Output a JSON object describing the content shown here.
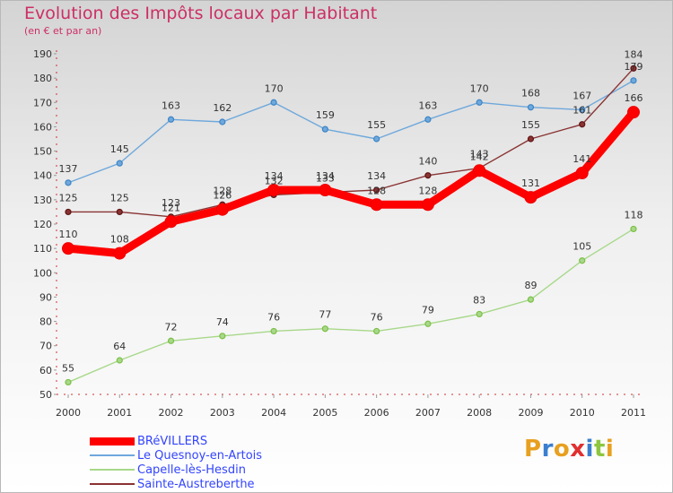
{
  "header": {
    "title": "Evolution des Impôts locaux par Habitant",
    "subtitle": "(en € et par an)"
  },
  "brand": {
    "letters": [
      "P",
      "r",
      "o",
      "x",
      "i",
      "t",
      "i"
    ],
    "colors": [
      "#e8a020",
      "#3a7fcf",
      "#e8a020",
      "#e03030",
      "#3a7fcf",
      "#8dc63f",
      "#e8a020"
    ]
  },
  "chart_data": {
    "type": "line",
    "title": "Evolution des Impôts locaux par Habitant",
    "ylabel": "(en € et par an)",
    "xlabel": "",
    "x": [
      "2000",
      "2001",
      "2002",
      "2003",
      "2004",
      "2005",
      "2006",
      "2007",
      "2008",
      "2009",
      "2010",
      "2011"
    ],
    "ylim": [
      50,
      190
    ],
    "yticks": [
      50,
      60,
      70,
      80,
      90,
      100,
      110,
      120,
      130,
      140,
      150,
      160,
      170,
      180,
      190
    ],
    "grid": false,
    "legend_position": "bottom-left",
    "series": [
      {
        "name": "BRéVILLERS",
        "color": "#ff0000",
        "marker": "#ee0000",
        "values": [
          110,
          108,
          121,
          126,
          134,
          134,
          128,
          128,
          142,
          131,
          141,
          166
        ],
        "labels": [
          "110",
          "108",
          "121",
          "126",
          "134",
          "134",
          "128",
          "128",
          "142",
          "131",
          "141",
          "166"
        ]
      },
      {
        "name": "Le Quesnoy-en-Artois",
        "color": "#6fa8dc",
        "marker": "#3d85c6",
        "values": [
          137,
          145,
          163,
          162,
          170,
          159,
          155,
          163,
          170,
          168,
          167,
          179
        ],
        "labels": [
          "137",
          "145",
          "163",
          "162",
          "170",
          "159",
          "155",
          "163",
          "170",
          "168",
          "167",
          "179"
        ]
      },
      {
        "name": "Capelle-lès-Hesdin",
        "color": "#a8d88a",
        "marker": "#7cc047",
        "values": [
          55,
          64,
          72,
          74,
          76,
          77,
          76,
          79,
          83,
          89,
          105,
          118
        ],
        "labels": [
          "55",
          "64",
          "72",
          "74",
          "76",
          "77",
          "76",
          "79",
          "83",
          "89",
          "105",
          "118"
        ]
      },
      {
        "name": "Sainte-Austreberthe",
        "color": "#8a3333",
        "marker": "#5e1414",
        "values": [
          125,
          125,
          123,
          128,
          132,
          133,
          134,
          140,
          143,
          155,
          161,
          184
        ],
        "labels": [
          "125",
          "125",
          "123",
          "128",
          "132",
          "133",
          "134",
          "140",
          "143",
          "155",
          "161",
          "184"
        ]
      }
    ]
  }
}
